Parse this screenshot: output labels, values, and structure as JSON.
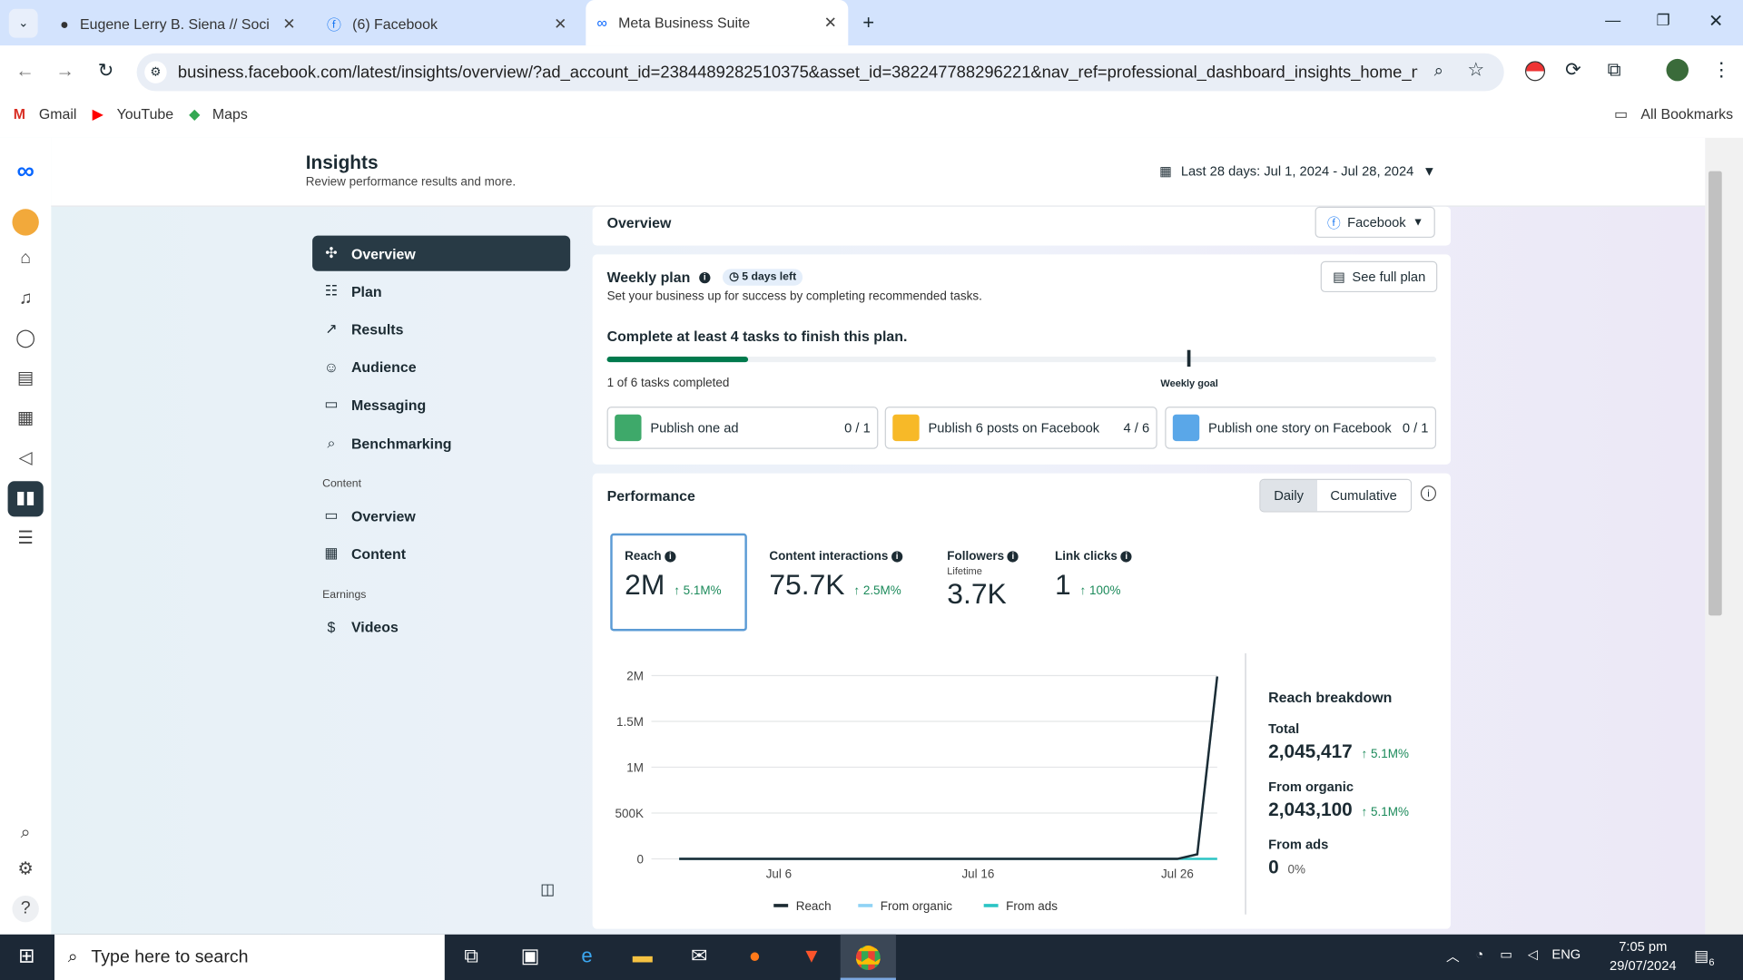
{
  "browser": {
    "tabs": [
      {
        "title": "Eugene Lerry B. Siena // Social M"
      },
      {
        "title": "(6) Facebook"
      },
      {
        "title": "Meta Business Suite",
        "active": true
      }
    ],
    "url": "business.facebook.com/latest/insights/overview/?ad_account_id=238448928251037​5&asset_id=382247788296221&nav_ref=professional_dashboard_insights_home_mbs_ups...",
    "bookmarks": [
      "Gmail",
      "YouTube",
      "Maps"
    ],
    "all_bookmarks": "All Bookmarks"
  },
  "header": {
    "title": "Insights",
    "subtitle": "Review performance results and more.",
    "date_range": "Last 28 days: Jul 1, 2024 - Jul 28, 2024"
  },
  "sidebar": {
    "items": [
      {
        "label": "Overview",
        "icon": "overview-icon",
        "active": true
      },
      {
        "label": "Plan",
        "icon": "plan-icon"
      },
      {
        "label": "Results",
        "icon": "results-icon"
      },
      {
        "label": "Audience",
        "icon": "audience-icon"
      },
      {
        "label": "Messaging",
        "icon": "messaging-icon"
      },
      {
        "label": "Benchmarking",
        "icon": "benchmarking-icon"
      }
    ],
    "content_section": "Content",
    "content_items": [
      {
        "label": "Overview"
      },
      {
        "label": "Content"
      }
    ],
    "earnings_section": "Earnings",
    "earnings_items": [
      {
        "label": "Videos"
      }
    ]
  },
  "overview": {
    "title": "Overview",
    "platform": "Facebook"
  },
  "weekly_plan": {
    "title": "Weekly plan",
    "badge": "5 days left",
    "subtitle": "Set your business up for success by completing recommended tasks.",
    "see_full_plan": "See full plan",
    "goal_text": "Complete at least 4 tasks to finish this plan.",
    "progress": 0.17,
    "goal_marker": 0.7,
    "completed_text": "1 of 6 tasks completed",
    "weekly_goal": "Weekly goal",
    "tasks": [
      {
        "label": "Publish one ad",
        "count": "0 / 1"
      },
      {
        "label": "Publish 6 posts on Facebook",
        "count": "4 / 6"
      },
      {
        "label": "Publish one story on Facebook",
        "count": "0 / 1"
      }
    ]
  },
  "performance": {
    "title": "Performance",
    "toggle": [
      "Daily",
      "Cumulative"
    ],
    "selected": "Daily",
    "metrics": [
      {
        "label": "Reach",
        "value": "2M",
        "change": "↑ 5.1M%"
      },
      {
        "label": "Content interactions",
        "value": "75.7K",
        "change": "↑ 2.5M%"
      },
      {
        "label": "Followers",
        "sub": "Lifetime",
        "value": "3.7K"
      },
      {
        "label": "Link clicks",
        "value": "1",
        "change": "↑ 100%"
      }
    ],
    "breakdown": {
      "title": "Reach breakdown",
      "total_label": "Total",
      "total": "2,045,417",
      "total_change": "↑ 5.1M%",
      "organic_label": "From organic",
      "organic": "2,043,100",
      "organic_change": "↑ 5.1M%",
      "ads_label": "From ads",
      "ads": "0",
      "ads_change": "0%"
    }
  },
  "chart_data": {
    "type": "line",
    "x": [
      "Jul 1",
      "Jul 2",
      "Jul 3",
      "Jul 4",
      "Jul 5",
      "Jul 6",
      "Jul 7",
      "Jul 8",
      "Jul 9",
      "Jul 10",
      "Jul 11",
      "Jul 12",
      "Jul 13",
      "Jul 14",
      "Jul 15",
      "Jul 16",
      "Jul 17",
      "Jul 18",
      "Jul 19",
      "Jul 20",
      "Jul 21",
      "Jul 22",
      "Jul 23",
      "Jul 24",
      "Jul 25",
      "Jul 26",
      "Jul 27",
      "Jul 28"
    ],
    "x_ticks": [
      "Jul 6",
      "Jul 16",
      "Jul 26"
    ],
    "y_ticks": [
      "0",
      "500K",
      "1M",
      "1.5M",
      "2M"
    ],
    "ylim": [
      0,
      2000000
    ],
    "grid": true,
    "legend": "bottom",
    "series": [
      {
        "name": "Reach",
        "color": "#1c2b33",
        "values": [
          0,
          0,
          0,
          0,
          0,
          0,
          0,
          0,
          0,
          0,
          0,
          0,
          0,
          0,
          0,
          0,
          0,
          0,
          0,
          0,
          0,
          0,
          0,
          0,
          0,
          0,
          50000,
          1990000
        ]
      },
      {
        "name": "From organic",
        "color": "#8fd3f5",
        "values": [
          0,
          0,
          0,
          0,
          0,
          0,
          0,
          0,
          0,
          0,
          0,
          0,
          0,
          0,
          0,
          0,
          0,
          0,
          0,
          0,
          0,
          0,
          0,
          0,
          0,
          0,
          50000,
          1990000
        ]
      },
      {
        "name": "From ads",
        "color": "#2bc4c4",
        "values": [
          0,
          0,
          0,
          0,
          0,
          0,
          0,
          0,
          0,
          0,
          0,
          0,
          0,
          0,
          0,
          0,
          0,
          0,
          0,
          0,
          0,
          0,
          0,
          0,
          0,
          0,
          0,
          0
        ]
      }
    ]
  },
  "taskbar": {
    "search_placeholder": "Type here to search",
    "time": "7:05 pm",
    "date": "29/07/2024",
    "lang": "ENG",
    "notifications": "6"
  }
}
